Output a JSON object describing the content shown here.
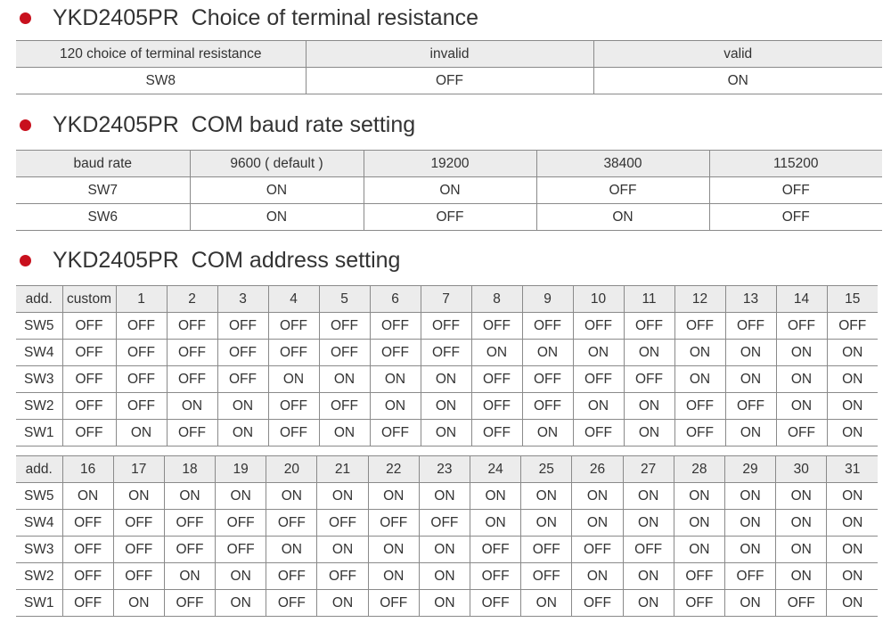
{
  "sections": [
    {
      "heading": "YKD2405PR  Choice of terminal resistance",
      "tables": [
        {
          "header": [
            "120 choice of terminal resistance",
            "invalid",
            "valid"
          ],
          "rows": [
            [
              "SW8",
              "OFF",
              "ON"
            ]
          ]
        }
      ]
    },
    {
      "heading": "YKD2405PR  COM baud rate setting",
      "tables": [
        {
          "header": [
            "baud rate",
            "9600 ( default )",
            "19200",
            "38400",
            "115200"
          ],
          "rows": [
            [
              "SW7",
              "ON",
              "ON",
              "OFF",
              "OFF"
            ],
            [
              "SW6",
              "ON",
              "OFF",
              "ON",
              "OFF"
            ]
          ]
        }
      ]
    },
    {
      "heading": "YKD2405PR  COM address setting",
      "tables": [
        {
          "header": [
            "add.",
            "custom",
            "1",
            "2",
            "3",
            "4",
            "5",
            "6",
            "7",
            "8",
            "9",
            "10",
            "11",
            "12",
            "13",
            "14",
            "15"
          ],
          "rows": [
            [
              "SW5",
              "OFF",
              "OFF",
              "OFF",
              "OFF",
              "OFF",
              "OFF",
              "OFF",
              "OFF",
              "OFF",
              "OFF",
              "OFF",
              "OFF",
              "OFF",
              "OFF",
              "OFF",
              "OFF"
            ],
            [
              "SW4",
              "OFF",
              "OFF",
              "OFF",
              "OFF",
              "OFF",
              "OFF",
              "OFF",
              "OFF",
              "ON",
              "ON",
              "ON",
              "ON",
              "ON",
              "ON",
              "ON",
              "ON"
            ],
            [
              "SW3",
              "OFF",
              "OFF",
              "OFF",
              "OFF",
              "ON",
              "ON",
              "ON",
              "ON",
              "OFF",
              "OFF",
              "OFF",
              "OFF",
              "ON",
              "ON",
              "ON",
              "ON"
            ],
            [
              "SW2",
              "OFF",
              "OFF",
              "ON",
              "ON",
              "OFF",
              "OFF",
              "ON",
              "ON",
              "OFF",
              "OFF",
              "ON",
              "ON",
              "OFF",
              "OFF",
              "ON",
              "ON"
            ],
            [
              "SW1",
              "OFF",
              "ON",
              "OFF",
              "ON",
              "OFF",
              "ON",
              "OFF",
              "ON",
              "OFF",
              "ON",
              "OFF",
              "ON",
              "OFF",
              "ON",
              "OFF",
              "ON"
            ]
          ]
        },
        {
          "header": [
            "add.",
            "16",
            "17",
            "18",
            "19",
            "20",
            "21",
            "22",
            "23",
            "24",
            "25",
            "26",
            "27",
            "28",
            "29",
            "30",
            "31"
          ],
          "rows": [
            [
              "SW5",
              "ON",
              "ON",
              "ON",
              "ON",
              "ON",
              "ON",
              "ON",
              "ON",
              "ON",
              "ON",
              "ON",
              "ON",
              "ON",
              "ON",
              "ON",
              "ON"
            ],
            [
              "SW4",
              "OFF",
              "OFF",
              "OFF",
              "OFF",
              "OFF",
              "OFF",
              "OFF",
              "OFF",
              "ON",
              "ON",
              "ON",
              "ON",
              "ON",
              "ON",
              "ON",
              "ON"
            ],
            [
              "SW3",
              "OFF",
              "OFF",
              "OFF",
              "OFF",
              "ON",
              "ON",
              "ON",
              "ON",
              "OFF",
              "OFF",
              "OFF",
              "OFF",
              "ON",
              "ON",
              "ON",
              "ON"
            ],
            [
              "SW2",
              "OFF",
              "OFF",
              "ON",
              "ON",
              "OFF",
              "OFF",
              "ON",
              "ON",
              "OFF",
              "OFF",
              "ON",
              "ON",
              "OFF",
              "OFF",
              "ON",
              "ON"
            ],
            [
              "SW1",
              "OFF",
              "ON",
              "OFF",
              "ON",
              "OFF",
              "ON",
              "OFF",
              "ON",
              "OFF",
              "ON",
              "OFF",
              "ON",
              "OFF",
              "ON",
              "OFF",
              "ON"
            ]
          ]
        }
      ]
    }
  ]
}
